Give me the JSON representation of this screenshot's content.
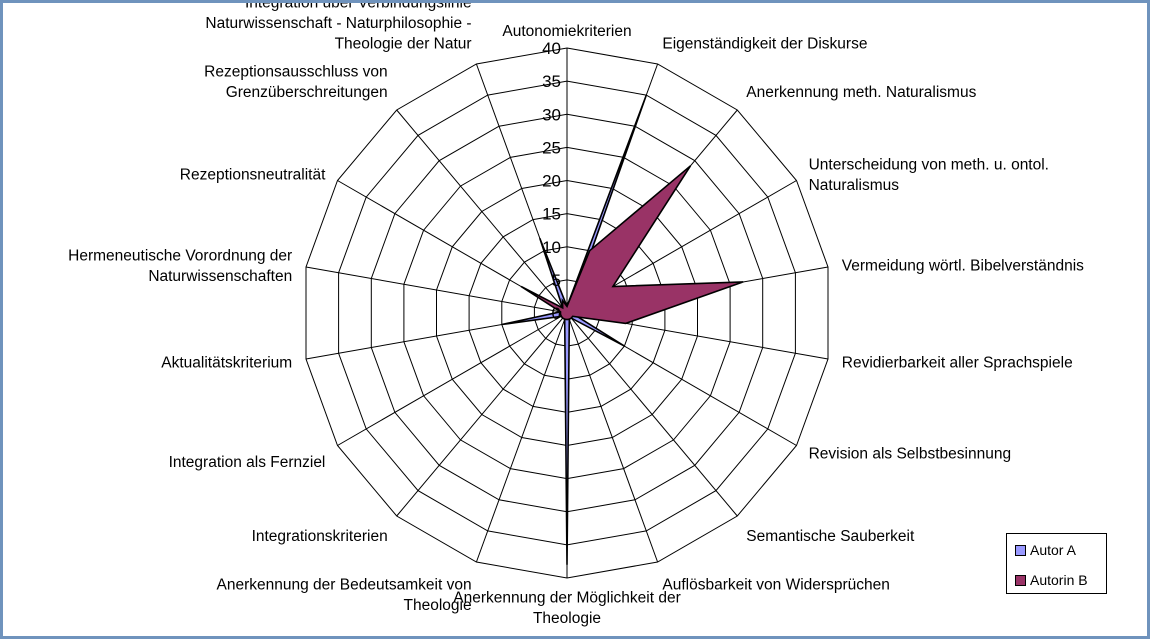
{
  "chart_data": {
    "type": "radar",
    "title": "",
    "rmax": 40,
    "ticks": [
      0,
      5,
      10,
      15,
      20,
      25,
      30,
      35,
      40
    ],
    "tick_labels": [
      "0",
      "5",
      "10",
      "15",
      "20",
      "25",
      "30",
      "35",
      "40"
    ],
    "categories": [
      "Autonomiekriterien",
      "Eigenständigkeit der Diskurse",
      "Anerkennung meth. Naturalismus",
      "Unterscheidung von meth. u. ontol. Naturalismus",
      "Vermeidung wörtl. Bibelverständnis",
      "Revidierbarkeit aller Sprachspiele",
      "Revision als Selbstbesinnung",
      "Semantische Sauberkeit",
      "Auflösbarkeit von Widersprüchen",
      "Anerkennung der Möglichkeit der Theologie",
      "Anerkennung der Bedeutsamkeit von Theologie",
      "Integrationskriterien",
      "Integration als Fernziel",
      "Aktualitätskriterium",
      "Hermeneutische Vorordnung der Naturwissenschaften",
      "Rezeptionsneutralität",
      "Rezeptionsausschluss von Grenzüberschreitungen",
      "Integration über Verbindungslinie Naturwissenschaft - Naturphilosophie - Theologie der Natur"
    ],
    "category_lines": [
      [
        "Autonomiekriterien"
      ],
      [
        "Eigenständigkeit der Diskurse"
      ],
      [
        "Anerkennung meth. Naturalismus"
      ],
      [
        "Unterscheidung von meth. u. ontol.",
        "Naturalismus"
      ],
      [
        "Vermeidung wörtl. Bibelverständnis"
      ],
      [
        "Revidierbarkeit aller Sprachspiele"
      ],
      [
        "Revision als Selbstbesinnung"
      ],
      [
        "Semantische Sauberkeit"
      ],
      [
        "Auflösbarkeit von Widersprüchen"
      ],
      [
        "Anerkennung der Möglichkeit der",
        "Theologie"
      ],
      [
        "Anerkennung der Bedeutsamkeit von",
        "Theologie"
      ],
      [
        "Integrationskriterien"
      ],
      [
        "Integration als Fernziel"
      ],
      [
        "Aktualitätskriterium"
      ],
      [
        "Hermeneutische Vorordnung der",
        "Naturwissenschaften"
      ],
      [
        "Rezeptionsneutralität"
      ],
      [
        "Rezeptionsausschluss von",
        "Grenzüberschreitungen"
      ],
      [
        "Integration über Verbindungslinie",
        "Naturwissenschaft - Naturphilosophie -",
        "Theologie der Natur"
      ]
    ],
    "series": [
      {
        "name": "Autor A",
        "color": "#9999ff",
        "values": [
          1,
          35,
          1,
          2,
          1,
          1,
          10,
          1,
          1,
          38,
          1,
          1,
          1,
          10,
          1,
          1,
          1,
          12
        ]
      },
      {
        "name": "Autorin B",
        "color": "#993366",
        "values": [
          1,
          10,
          29,
          8,
          27,
          9,
          1,
          1,
          1,
          1,
          1,
          1,
          1,
          1,
          1,
          8,
          1,
          2
        ]
      }
    ],
    "legend_position": "bottom-right",
    "grid": true
  }
}
